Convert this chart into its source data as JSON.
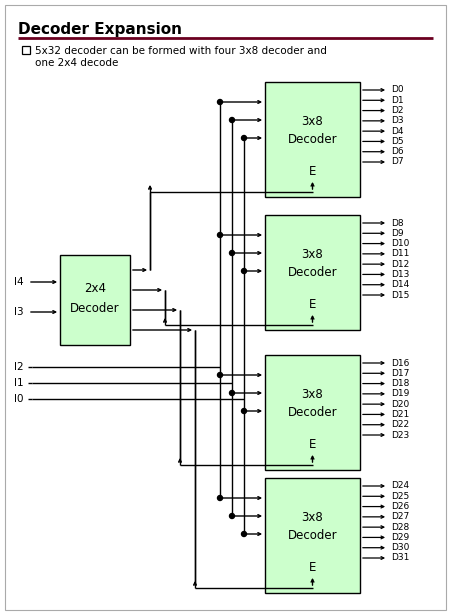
{
  "title": "Decoder Expansion",
  "subtitle_line1": "5x32 decoder can be formed with four 3x8 decoder and",
  "subtitle_line2": "one 2x4 decode",
  "bg_color": "#FFFFFF",
  "green_fill": "#CCFFCC",
  "black": "#000000",
  "rule_color": "#6B0020",
  "outputs": [
    [
      "D0",
      "D1",
      "D2",
      "D3",
      "D4",
      "D5",
      "D6",
      "D7"
    ],
    [
      "D8",
      "D9",
      "D10",
      "D11",
      "D12",
      "D13",
      "D14",
      "D15"
    ],
    [
      "D16",
      "D17",
      "D18",
      "D19",
      "D20",
      "D21",
      "D22",
      "D23"
    ],
    [
      "D24",
      "D25",
      "D26",
      "D27",
      "D28",
      "D29",
      "D30",
      "D31"
    ]
  ],
  "figw": 4.51,
  "figh": 6.15,
  "dpi": 100
}
